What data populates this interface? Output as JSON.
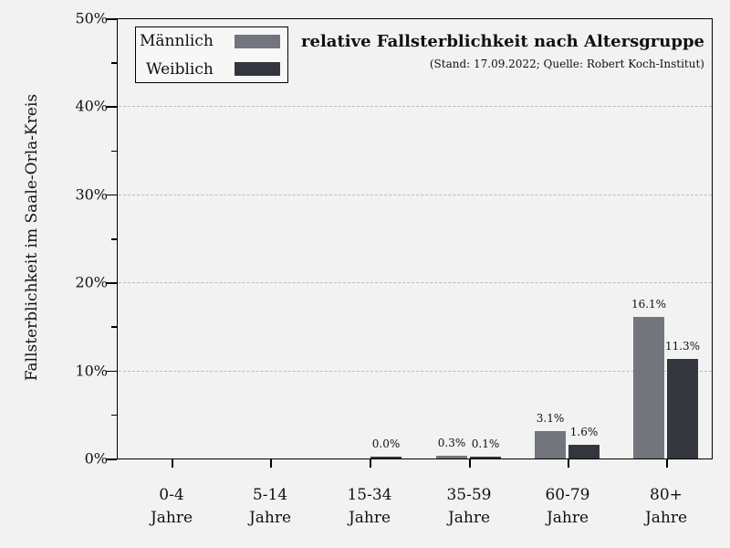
{
  "chart_data": {
    "type": "bar",
    "title": "relative Fallsterblichkeit nach Altersgruppe",
    "subtitle": "(Stand: 17.09.2022; Quelle: Robert Koch-Institut)",
    "xlabel": "",
    "ylabel": "Fallsterblichkeit im Saale-Orla-Kreis",
    "ylim": [
      0,
      50
    ],
    "yticks": [
      "0%",
      "10%",
      "20%",
      "30%",
      "40%",
      "50%"
    ],
    "grid": true,
    "legend_position": "upper left",
    "categories": [
      "0-4 Jahre",
      "5-14 Jahre",
      "15-34 Jahre",
      "35-59 Jahre",
      "60-79 Jahre",
      "80+ Jahre"
    ],
    "category_lines": [
      [
        "0-4",
        "Jahre"
      ],
      [
        "5-14",
        "Jahre"
      ],
      [
        "15-34",
        "Jahre"
      ],
      [
        "35-59",
        "Jahre"
      ],
      [
        "60-79",
        "Jahre"
      ],
      [
        "80+",
        "Jahre"
      ]
    ],
    "series": [
      {
        "name": "Männlich",
        "color": "#72757c",
        "values": [
          0,
          0,
          0,
          0.3,
          3.1,
          16.1
        ],
        "labels": [
          "",
          "",
          "",
          "0.3%",
          "3.1%",
          "16.1%"
        ]
      },
      {
        "name": "Weiblich",
        "color": "#33363d",
        "values": [
          0,
          0,
          0.0,
          0.1,
          1.6,
          11.3
        ],
        "labels": [
          "",
          "",
          "0.0%",
          "0.1%",
          "1.6%",
          "11.3%"
        ]
      }
    ]
  }
}
